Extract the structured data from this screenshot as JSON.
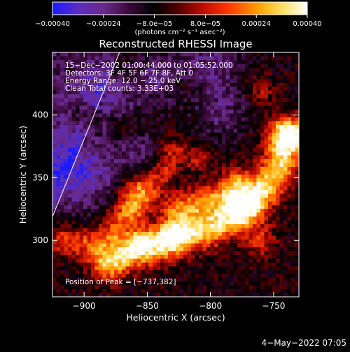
{
  "chart_data": {
    "type": "heatmap",
    "title": "Reconstructed RHESSI Image",
    "xlabel": "Heliocentric X (arcsec)",
    "ylabel": "Heliocentric Y (arcsec)",
    "xlim": [
      -925,
      -730
    ],
    "ylim": [
      255,
      450
    ],
    "x_ticks": [
      {
        "value": -900,
        "label": "−900"
      },
      {
        "value": -850,
        "label": "−850"
      },
      {
        "value": -800,
        "label": "−800"
      },
      {
        "value": -750,
        "label": "−750"
      }
    ],
    "y_ticks": [
      {
        "value": 300,
        "label": "300"
      },
      {
        "value": 350,
        "label": "350"
      },
      {
        "value": 400,
        "label": "400"
      }
    ],
    "colorbar": {
      "range": [
        -0.0004,
        0.0004
      ],
      "unit_label": "(photons cm⁻² s⁻¹ asec⁻²)",
      "ticks": [
        {
          "value": -0.0004,
          "label": "−0.00040"
        },
        {
          "value": -0.00024,
          "label": "−0.00024"
        },
        {
          "value": -8e-05,
          "label": "−8.0e−05"
        },
        {
          "value": 8e-05,
          "label": "8.0e−05"
        },
        {
          "value": 0.00024,
          "label": "0.00024"
        },
        {
          "value": 0.0004,
          "label": "0.00040"
        }
      ],
      "colors": [
        "#1a1aff",
        "#5a2ec0",
        "#6a2a8a",
        "#3a0a3a",
        "#000000",
        "#5a0000",
        "#c01000",
        "#ff4000",
        "#ff9a00",
        "#ffe060",
        "#ffffff"
      ]
    },
    "info_lines": [
      "15−Dec−2002 01:00:44.000 to 01:05:52.000",
      "Detectors: 3F 4F 5F 6F 7F 8F, Att 0",
      "Energy Range: 12.0 − 25.0 keV",
      "Clean    Total counts: 3.33E+03"
    ],
    "peak_label": "Position of Peak = [−737,382]",
    "limb_line": {
      "x": [
        -925,
        -872
      ],
      "y": [
        319,
        450
      ]
    },
    "ridges": [
      {
        "points": [
          [
            -740,
            385
          ],
          [
            -745,
            360
          ],
          [
            -755,
            345
          ],
          [
            -765,
            330
          ],
          [
            -780,
            318
          ],
          [
            -800,
            310
          ],
          [
            -818,
            305
          ],
          [
            -830,
            300
          ],
          [
            -845,
            295
          ],
          [
            -865,
            290
          ],
          [
            -880,
            282
          ]
        ],
        "amp": 1.0,
        "width": 10
      },
      {
        "points": [
          [
            -780,
            345
          ],
          [
            -790,
            335
          ],
          [
            -805,
            332
          ],
          [
            -815,
            328
          ],
          [
            -825,
            325
          ]
        ],
        "amp": 0.7,
        "width": 9
      },
      {
        "points": [
          [
            -860,
            340
          ],
          [
            -870,
            320
          ],
          [
            -880,
            305
          ],
          [
            -895,
            298
          ],
          [
            -915,
            300
          ]
        ],
        "amp": 0.55,
        "width": 9
      },
      {
        "points": [
          [
            -830,
            370
          ],
          [
            -838,
            355
          ],
          [
            -848,
            340
          ],
          [
            -858,
            325
          ]
        ],
        "amp": 0.45,
        "width": 8
      }
    ],
    "blobs": [
      {
        "x": -737,
        "y": 382,
        "amp": 1.0,
        "r": 8
      },
      {
        "x": -775,
        "y": 330,
        "amp": 0.95,
        "r": 9
      },
      {
        "x": -830,
        "y": 305,
        "amp": 0.9,
        "r": 8
      },
      {
        "x": -855,
        "y": 300,
        "amp": 0.85,
        "r": 7
      },
      {
        "x": -810,
        "y": 365,
        "amp": 0.65,
        "r": 7
      },
      {
        "x": -760,
        "y": 300,
        "amp": 0.75,
        "r": 9
      },
      {
        "x": -900,
        "y": 400,
        "amp": 0.5,
        "r": 7
      },
      {
        "x": -870,
        "y": 390,
        "amp": 0.45,
        "r": 6
      },
      {
        "x": -760,
        "y": 420,
        "amp": 0.55,
        "r": 8
      },
      {
        "x": -820,
        "y": 425,
        "amp": 0.35,
        "r": 7
      }
    ],
    "negative_zones": [
      {
        "x": -905,
        "y": 355,
        "amp": -0.9,
        "r": 22
      },
      {
        "x": -880,
        "y": 415,
        "amp": -0.6,
        "r": 16
      },
      {
        "x": -800,
        "y": 440,
        "amp": -0.55,
        "r": 18
      },
      {
        "x": -840,
        "y": 430,
        "amp": -0.5,
        "r": 15
      },
      {
        "x": -790,
        "y": 400,
        "amp": -0.45,
        "r": 14
      },
      {
        "x": -855,
        "y": 370,
        "amp": -0.4,
        "r": 12
      }
    ]
  },
  "timestamp": "4−May−2022 07:05"
}
